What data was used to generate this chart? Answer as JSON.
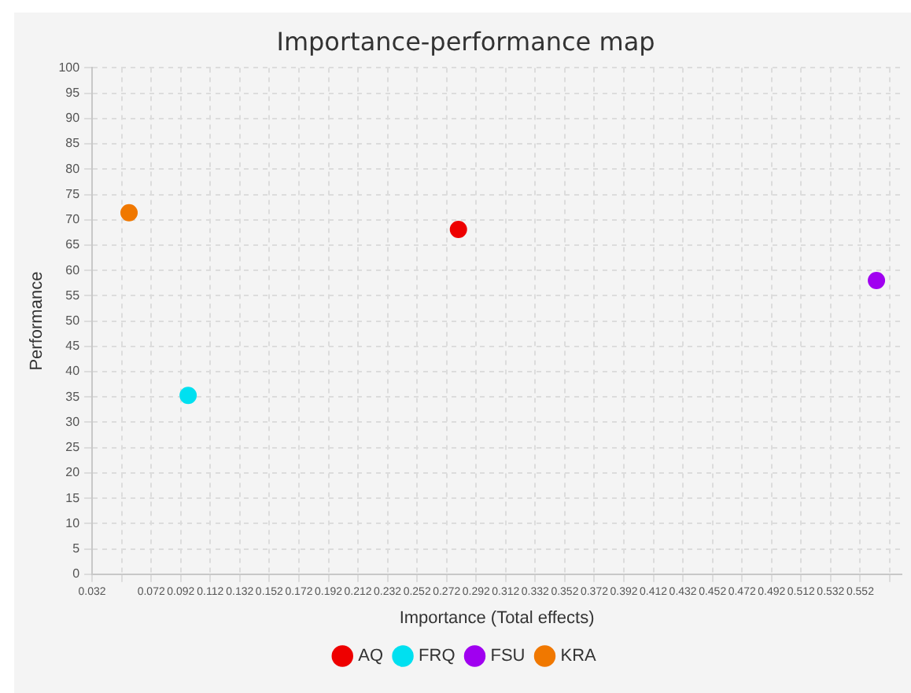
{
  "chart_data": {
    "type": "scatter",
    "title": "Importance-performance map",
    "xlabel": "Importance (Total effects)",
    "ylabel": "Performance",
    "xlim": [
      0.032,
      0.58
    ],
    "xticks": [
      0.032,
      {
        "value": 0.052,
        "label": null
      },
      0.072,
      0.092,
      0.112,
      0.132,
      0.152,
      0.172,
      0.192,
      0.212,
      0.232,
      0.252,
      0.272,
      0.292,
      0.312,
      0.332,
      0.352,
      0.372,
      0.392,
      0.412,
      0.432,
      0.452,
      0.472,
      0.492,
      0.512,
      0.532,
      0.552,
      {
        "value": 0.572,
        "label": null
      }
    ],
    "ylim": [
      0,
      100
    ],
    "yticks": [
      0,
      5,
      10,
      15,
      20,
      25,
      30,
      35,
      40,
      45,
      50,
      55,
      60,
      65,
      70,
      75,
      80,
      85,
      90,
      95,
      100
    ],
    "series": [
      {
        "name": "AQ",
        "color": "#ee0000",
        "x": [
          0.28
        ],
        "values": [
          68.1
        ]
      },
      {
        "name": "FRQ",
        "color": "#00e0f0",
        "x": [
          0.097
        ],
        "values": [
          35.3
        ]
      },
      {
        "name": "FSU",
        "color": "#a000f0",
        "x": [
          0.563
        ],
        "values": [
          58.0
        ]
      },
      {
        "name": "KRA",
        "color": "#f07800",
        "x": [
          0.057
        ],
        "values": [
          71.4
        ]
      }
    ],
    "grid": true,
    "legend": "bottom",
    "marker": "circle"
  }
}
